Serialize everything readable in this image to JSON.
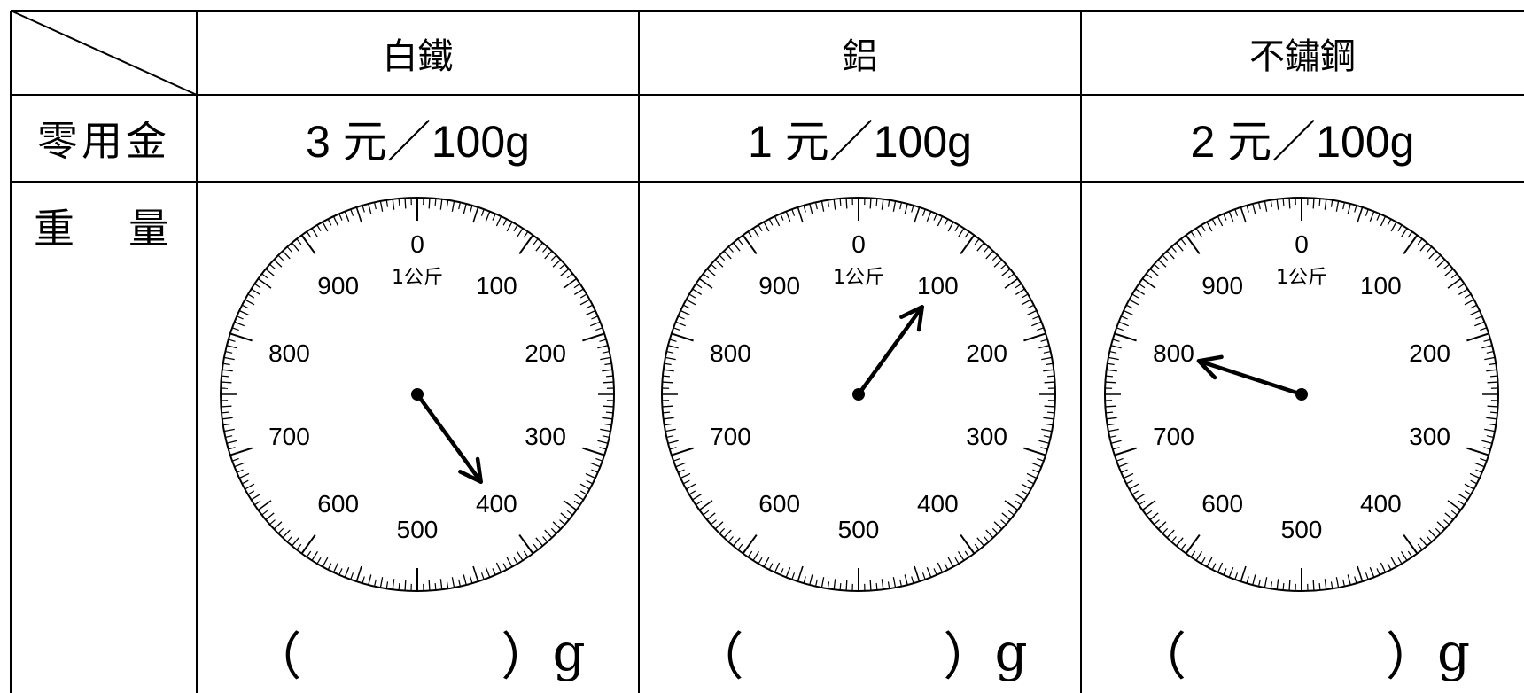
{
  "table": {
    "columns": [
      "白鐵",
      "鋁",
      "不鏽鋼"
    ],
    "rows": {
      "allowance": {
        "label": "零用金",
        "values": [
          "3 元／100g",
          "1 元／100g",
          "2 元／100g"
        ]
      },
      "weight": {
        "label_left": "重",
        "label_right": "量"
      }
    }
  },
  "scale": {
    "unit_label": "1公斤",
    "dial_labels": [
      "0",
      "100",
      "200",
      "300",
      "400",
      "500",
      "600",
      "700",
      "800",
      "900"
    ],
    "readings": [
      400,
      100,
      800
    ]
  },
  "answer": {
    "open": "（",
    "close": "）",
    "unit": "g"
  }
}
